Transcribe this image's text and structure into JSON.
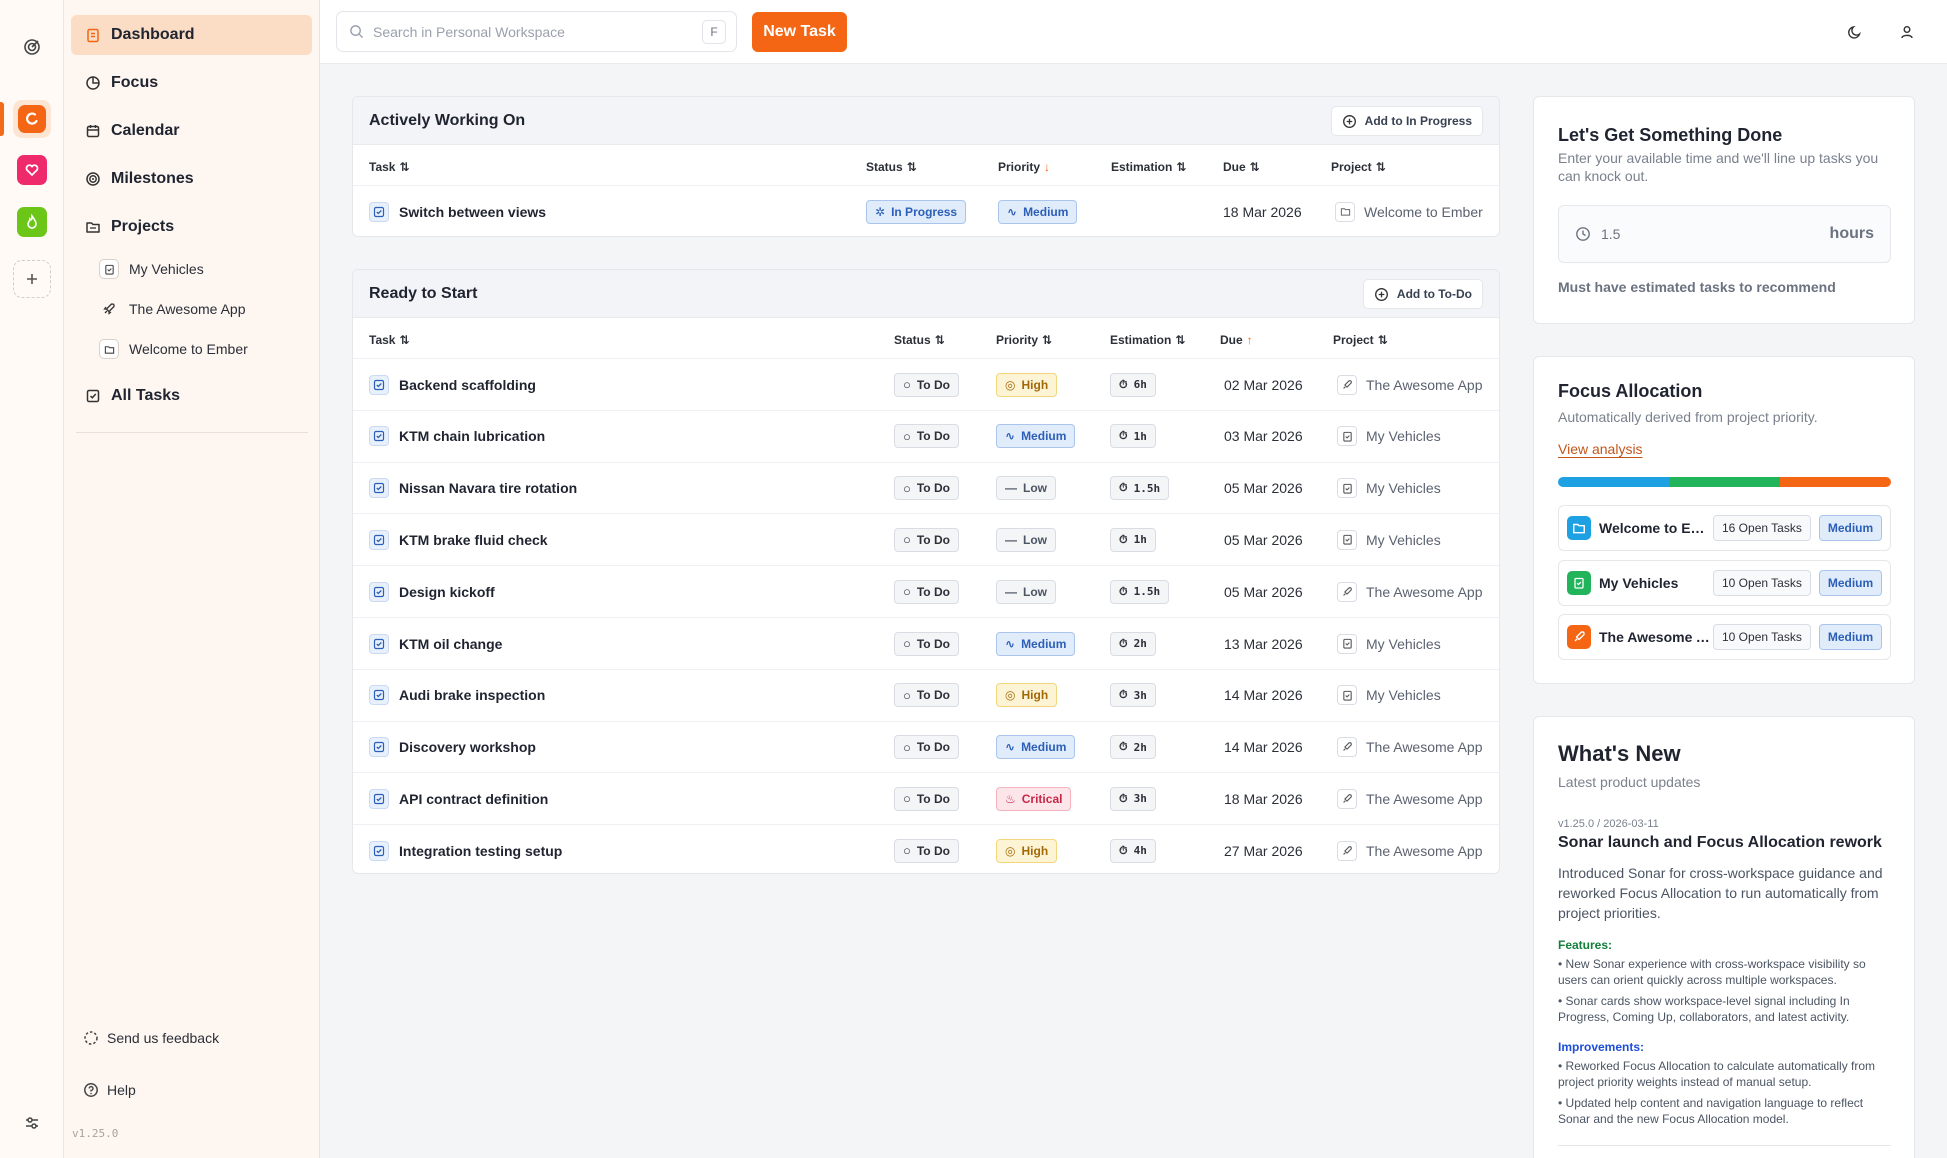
{
  "colors": {
    "accent": "#f46614",
    "medium": "#2c5fb8",
    "high": "#a26a07",
    "critical": "#c52848"
  },
  "rail": {
    "icons": [
      "app-logo-icon",
      "workspace-orange-icon",
      "workspace-pink-icon",
      "workspace-green-icon",
      "add-workspace-icon",
      "settings-sliders-icon"
    ]
  },
  "sidebar": {
    "nav": [
      {
        "label": "Dashboard",
        "icon": "clipboard-icon"
      },
      {
        "label": "Focus",
        "icon": "pie-chart-icon"
      },
      {
        "label": "Calendar",
        "icon": "calendar-icon"
      },
      {
        "label": "Milestones",
        "icon": "target-icon"
      },
      {
        "label": "Projects",
        "icon": "folder-icon"
      }
    ],
    "projects": [
      {
        "label": "My Vehicles",
        "icon": "clipboard-icon"
      },
      {
        "label": "The Awesome App",
        "icon": "rocket-icon"
      },
      {
        "label": "Welcome to Ember",
        "icon": "folder-icon"
      }
    ],
    "all_tasks": "All Tasks",
    "feedback": "Send us feedback",
    "help": "Help",
    "version": "v1.25.0"
  },
  "topbar": {
    "search_placeholder": "Search in Personal Workspace",
    "shortcut": "F",
    "new_task": "New Task"
  },
  "active": {
    "title": "Actively Working On",
    "add_label": "Add to In Progress",
    "columns": {
      "task": "Task",
      "status": "Status",
      "priority": "Priority",
      "estimation": "Estimation",
      "due": "Due",
      "project": "Project"
    },
    "rows": [
      {
        "task": "Switch between views",
        "status": "In Progress",
        "priority": "Medium",
        "estimation": "",
        "due": "18 Mar 2026",
        "project": "Welcome to Ember"
      }
    ]
  },
  "ready": {
    "title": "Ready to Start",
    "add_label": "Add to To-Do",
    "columns": {
      "task": "Task",
      "status": "Status",
      "priority": "Priority",
      "estimation": "Estimation",
      "due": "Due",
      "project": "Project"
    },
    "rows": [
      {
        "task": "Backend scaffolding",
        "status": "To Do",
        "priority": "High",
        "estimation": "6h",
        "due": "02 Mar 2026",
        "project": "The Awesome App"
      },
      {
        "task": "KTM chain lubrication",
        "status": "To Do",
        "priority": "Medium",
        "estimation": "1h",
        "due": "03 Mar 2026",
        "project": "My Vehicles"
      },
      {
        "task": "Nissan Navara tire rotation",
        "status": "To Do",
        "priority": "Low",
        "estimation": "1.5h",
        "due": "05 Mar 2026",
        "project": "My Vehicles"
      },
      {
        "task": "KTM brake fluid check",
        "status": "To Do",
        "priority": "Low",
        "estimation": "1h",
        "due": "05 Mar 2026",
        "project": "My Vehicles"
      },
      {
        "task": "Design kickoff",
        "status": "To Do",
        "priority": "Low",
        "estimation": "1.5h",
        "due": "05 Mar 2026",
        "project": "The Awesome App"
      },
      {
        "task": "KTM oil change",
        "status": "To Do",
        "priority": "Medium",
        "estimation": "2h",
        "due": "13 Mar 2026",
        "project": "My Vehicles"
      },
      {
        "task": "Audi brake inspection",
        "status": "To Do",
        "priority": "High",
        "estimation": "3h",
        "due": "14 Mar 2026",
        "project": "My Vehicles"
      },
      {
        "task": "Discovery workshop",
        "status": "To Do",
        "priority": "Medium",
        "estimation": "2h",
        "due": "14 Mar 2026",
        "project": "The Awesome App"
      },
      {
        "task": "API contract definition",
        "status": "To Do",
        "priority": "Critical",
        "estimation": "3h",
        "due": "18 Mar 2026",
        "project": "The Awesome App"
      },
      {
        "task": "Integration testing setup",
        "status": "To Do",
        "priority": "High",
        "estimation": "4h",
        "due": "27 Mar 2026",
        "project": "The Awesome App"
      }
    ]
  },
  "get_done": {
    "title": "Let's Get Something Done",
    "subtitle": "Enter your available time and we'll line up tasks you can knock out.",
    "hours_value": "1.5",
    "hours_unit": "hours",
    "note": "Must have estimated tasks to recommend"
  },
  "focus": {
    "title": "Focus Allocation",
    "subtitle": "Automatically derived from project priority.",
    "link": "View analysis",
    "segments": [
      {
        "color": "#1ea1e3",
        "share": 0.3333
      },
      {
        "color": "#22b45a",
        "share": 0.3333
      },
      {
        "color": "#f46614",
        "share": 0.3334
      }
    ],
    "projects": [
      {
        "name": "Welcome to Ember",
        "count": "16 Open Tasks",
        "priority": "Medium",
        "color": "#1ea1e3"
      },
      {
        "name": "My Vehicles",
        "count": "10 Open Tasks",
        "priority": "Medium",
        "color": "#22b45a"
      },
      {
        "name": "The Awesome App",
        "count": "10 Open Tasks",
        "priority": "Medium",
        "color": "#f46614"
      }
    ]
  },
  "news": {
    "title": "What's New",
    "subtitle": "Latest product updates",
    "version": "v1.25.0 / 2026-03-11",
    "headline": "Sonar launch and Focus Allocation rework",
    "body": "Introduced Sonar for cross-workspace guidance and reworked Focus Allocation to run automatically from project priorities.",
    "features_label": "Features:",
    "features": [
      "New Sonar experience with cross-workspace visibility so users can orient quickly across multiple workspaces.",
      "Sonar cards show workspace-level signal including In Progress, Coming Up, collaborators, and latest activity."
    ],
    "improvements_label": "Improvements:",
    "improvements": [
      "Reworked Focus Allocation to calculate automatically from project priority weights instead of manual setup.",
      "Updated help content and navigation language to reflect Sonar and the new Focus Allocation model."
    ]
  }
}
